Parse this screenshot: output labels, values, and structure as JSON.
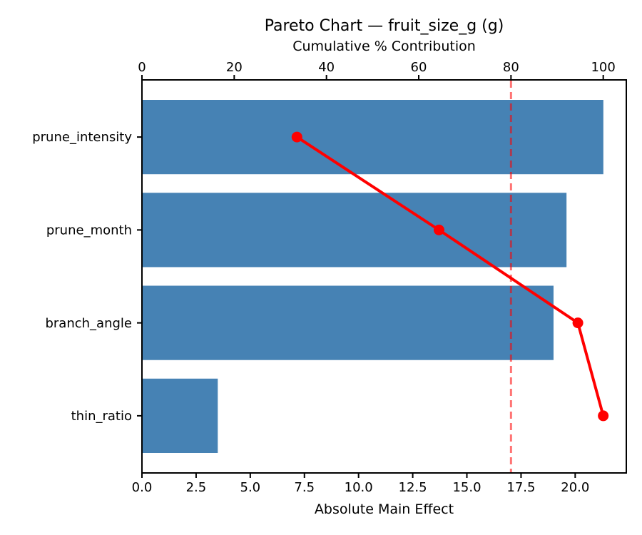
{
  "chart_data": {
    "type": "bar",
    "subtype": "pareto",
    "orientation": "horizontal",
    "title": "Pareto Chart — fruit_size_g (g)",
    "top_axis_label": "Cumulative % Contribution",
    "bottom_axis_label": "Absolute Main Effect",
    "categories": [
      "prune_intensity",
      "prune_month",
      "branch_angle",
      "thin_ratio"
    ],
    "bar_values": [
      21.3,
      19.6,
      19.0,
      3.5
    ],
    "cumulative_pct": [
      33.6,
      64.4,
      94.5,
      100.0
    ],
    "threshold_pct": 80,
    "bottom_axis": {
      "tick_values": [
        0.0,
        2.5,
        5.0,
        7.5,
        10.0,
        12.5,
        15.0,
        17.5,
        20.0
      ],
      "tick_labels": [
        "0.0",
        "2.5",
        "5.0",
        "7.5",
        "10.0",
        "12.5",
        "15.0",
        "17.5",
        "20.0"
      ],
      "lim": [
        0,
        22.36
      ]
    },
    "top_axis": {
      "tick_values": [
        0,
        20,
        40,
        60,
        80,
        100
      ],
      "tick_labels": [
        "0",
        "20",
        "40",
        "60",
        "80",
        "100"
      ],
      "lim": [
        0,
        105
      ]
    },
    "grid": false,
    "legend": null,
    "colors": {
      "bar": "#4682B4",
      "cumulative_line": "#FF0000",
      "marker": "#FF0000",
      "threshold_line": "#FF0000",
      "threshold_opacity": 0.55,
      "spine": "#000000",
      "text": "#000000",
      "background": "#FFFFFF"
    }
  }
}
